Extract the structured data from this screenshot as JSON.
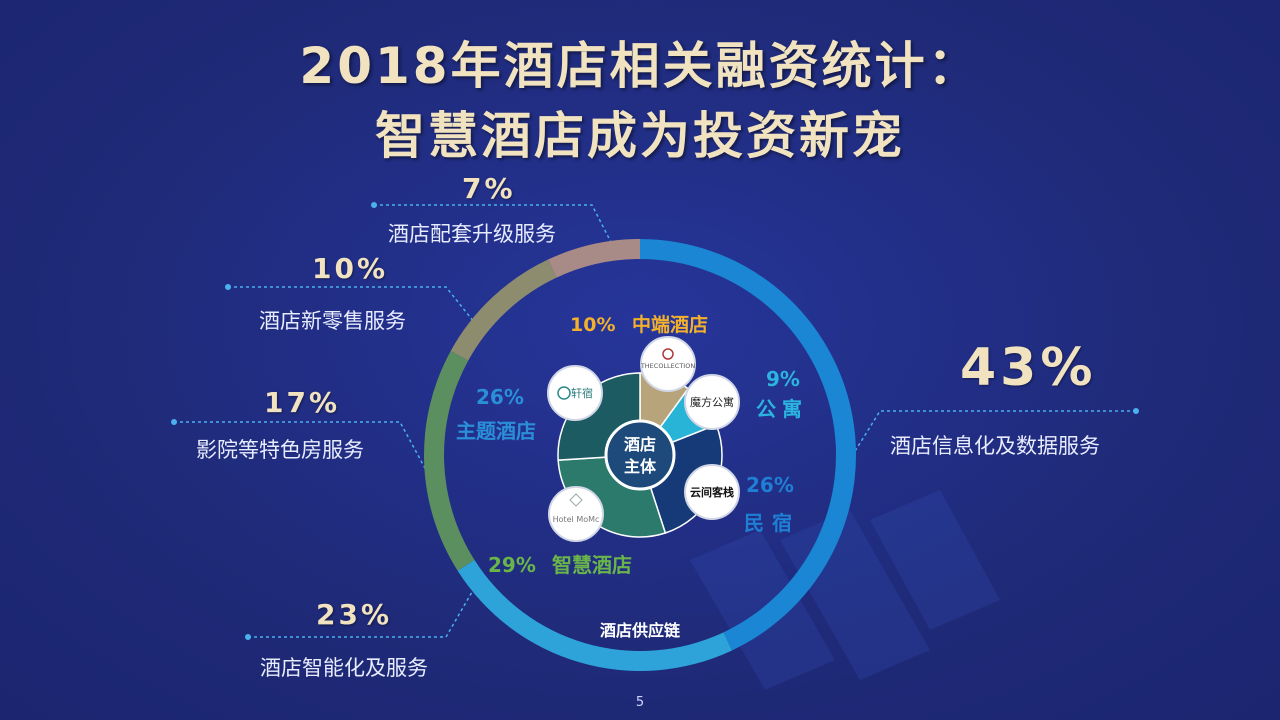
{
  "title": {
    "line1": "2018年酒店相关融资统计：",
    "line2": "智慧酒店成为投资新宠"
  },
  "chart_data": [
    {
      "type": "pie",
      "name": "酒店供应链",
      "ring_label": "酒店供应链",
      "slices": [
        {
          "label": "酒店信息化及数据服务",
          "value": 43,
          "display": "43%",
          "color": "#1a86d4"
        },
        {
          "label": "酒店智能化及服务",
          "value": 23,
          "display": "23%",
          "color": "#2ea3d9"
        },
        {
          "label": "影院等特色房服务",
          "value": 17,
          "display": "17%",
          "color": "#5b8f5f"
        },
        {
          "label": "酒店新零售服务",
          "value": 10,
          "display": "10%",
          "color": "#8e8c6e"
        },
        {
          "label": "酒店配套升级服务",
          "value": 7,
          "display": "7%",
          "color": "#a88a86"
        }
      ]
    },
    {
      "type": "pie",
      "name": "酒店主体",
      "center_label": [
        "酒店",
        "主体"
      ],
      "slices": [
        {
          "label": "中端酒店",
          "value": 10,
          "display": "10%",
          "color": "#b8a47a",
          "label_color": "#f2b02d"
        },
        {
          "label": "公寓",
          "value": 9,
          "display": "9%",
          "color": "#28b4d6",
          "label_color": "#2bb4e0"
        },
        {
          "label": "民宿",
          "value": 26,
          "display": "26%",
          "color": "#163a78",
          "label_color": "#1e7fd4"
        },
        {
          "label": "智慧酒店",
          "value": 29,
          "display": "29%",
          "color": "#2b7a6c",
          "label_color": "#6ab54a"
        },
        {
          "label": "主题酒店",
          "value": 26,
          "display": "26%",
          "color": "#1d5b63",
          "label_color": "#2a8fd8"
        }
      ]
    }
  ],
  "logos": {
    "zhongduan": "THECOLLECTION",
    "gongyu": "魔方公寓",
    "minsu": "云间客栈",
    "zhihui": "Hotel MoMc",
    "zhuti": "轩宿"
  },
  "colors": {
    "background": "#1f2a78",
    "title": "#f1e2c0",
    "leader_line": "#4ab0ee"
  },
  "page_number": "5"
}
